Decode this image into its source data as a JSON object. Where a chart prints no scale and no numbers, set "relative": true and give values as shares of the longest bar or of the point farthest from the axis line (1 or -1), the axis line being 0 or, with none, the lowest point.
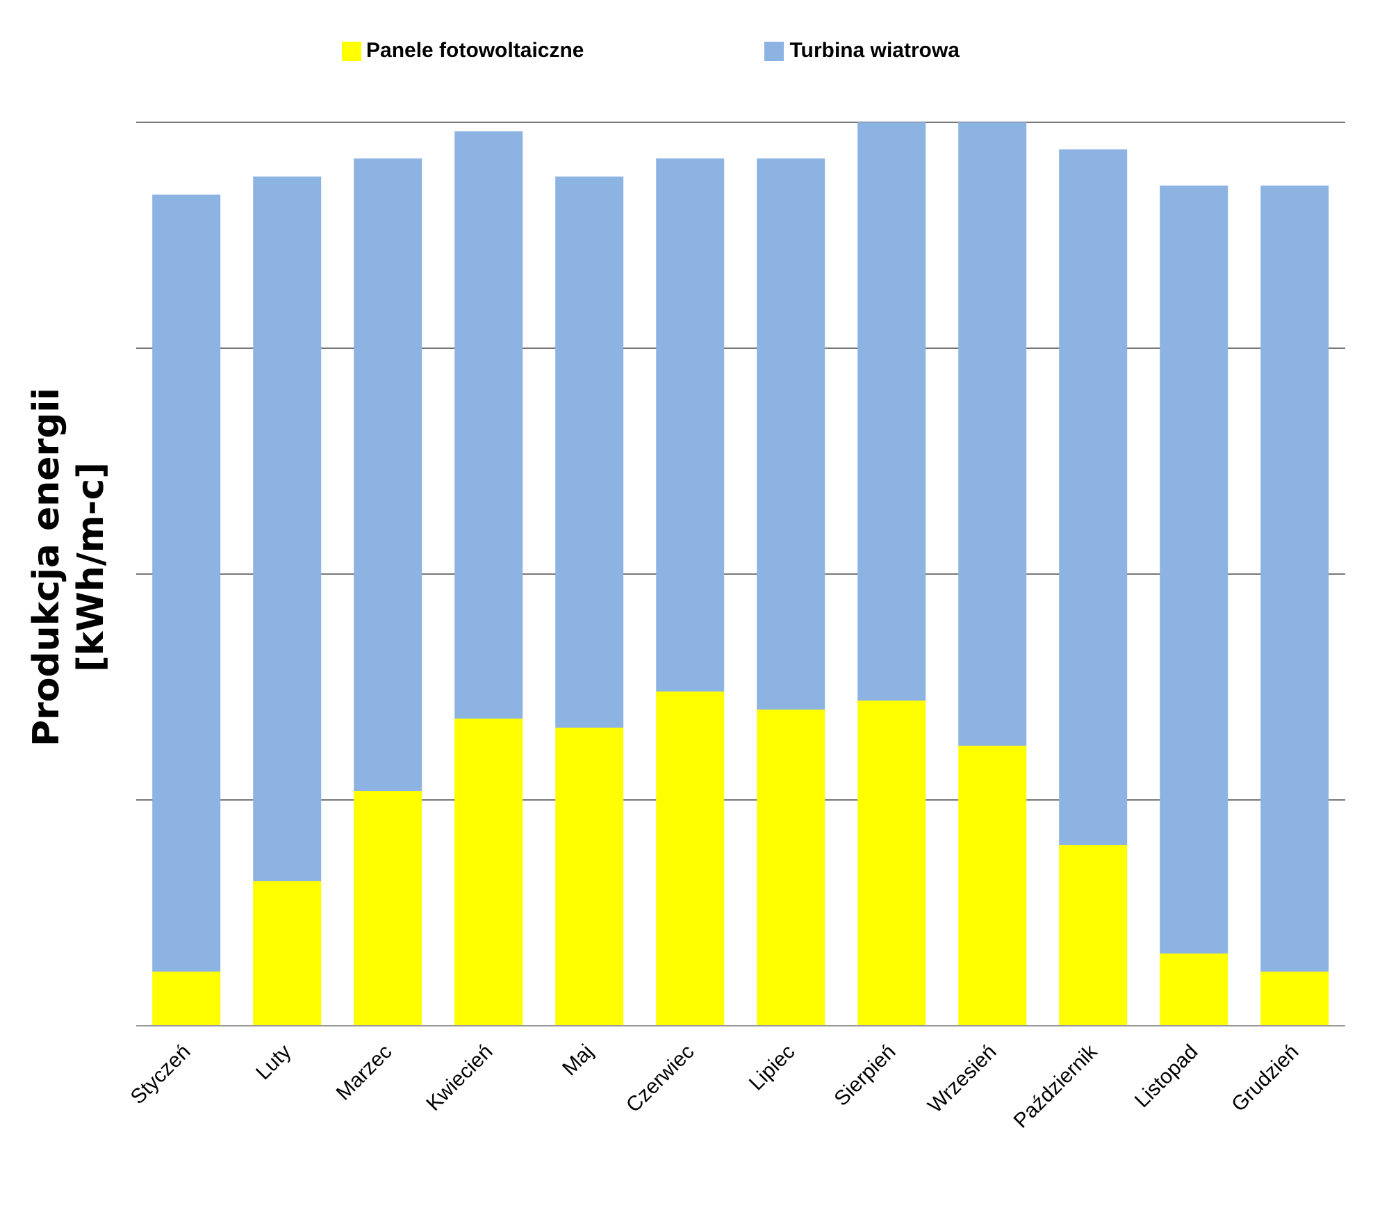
{
  "chart_data": {
    "type": "bar",
    "stacked": true,
    "relative": true,
    "ylabel": "Produkcja energii\n[kWh/m-c]",
    "categories": [
      "Styczeń",
      "Luty",
      "Marzec",
      "Kwiecień",
      "Maj",
      "Czerwiec",
      "Lipiec",
      "Sierpień",
      "Wrzesień",
      "Październik",
      "Listopad",
      "Grudzień"
    ],
    "series": [
      {
        "name": "Panele fotowoltaiczne",
        "color": "#ffff00",
        "values": [
          0.06,
          0.16,
          0.26,
          0.34,
          0.33,
          0.37,
          0.35,
          0.36,
          0.31,
          0.2,
          0.08,
          0.06
        ]
      },
      {
        "name": "Turbina wiatrowa",
        "color": "#8db3e2",
        "values": [
          0.86,
          0.78,
          0.7,
          0.65,
          0.61,
          0.59,
          0.61,
          0.64,
          0.69,
          0.77,
          0.85,
          0.87
        ]
      }
    ],
    "grid": "y",
    "legend": "top"
  }
}
